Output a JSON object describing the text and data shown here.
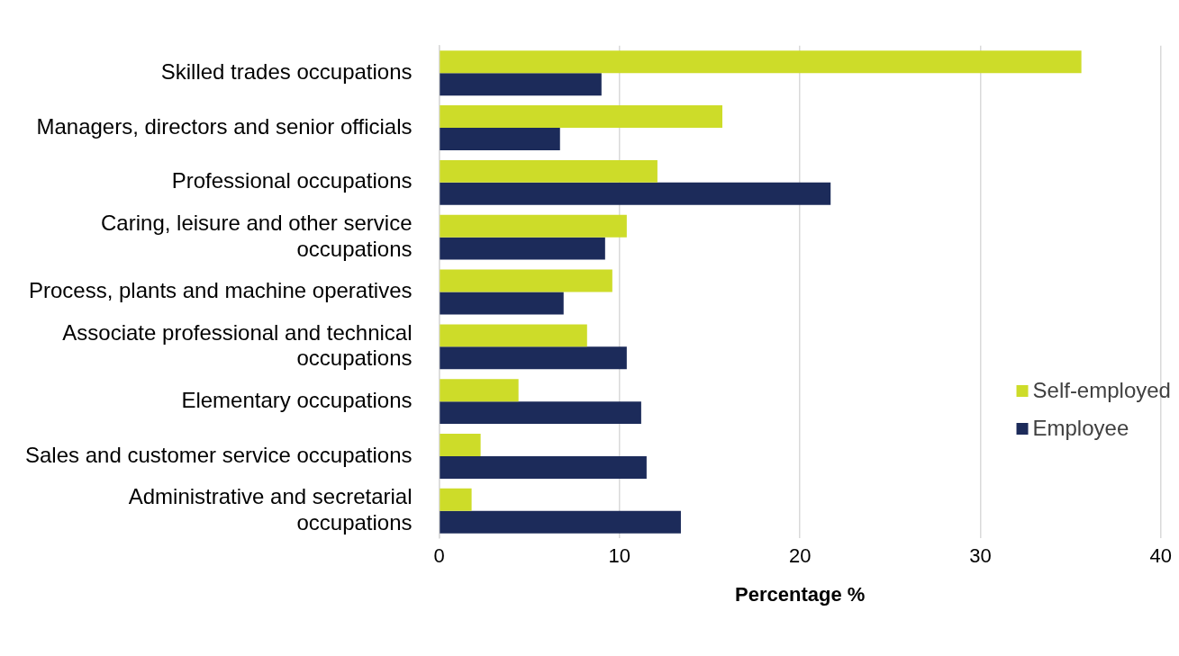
{
  "chart_data": {
    "type": "bar",
    "orientation": "horizontal",
    "xlabel": "Percentage %",
    "categories": [
      "Skilled trades occupations",
      "Managers, directors and senior officials",
      "Professional occupations",
      "Caring, leisure and other service occupations",
      "Process, plants and machine operatives",
      "Associate professional and technical occupations",
      "Elementary occupations",
      "Sales and customer service occupations",
      "Administrative and secretarial occupations"
    ],
    "series": [
      {
        "name": "Self-employed",
        "color": "#cddc29",
        "values": [
          35.6,
          15.7,
          12.1,
          10.4,
          9.6,
          8.2,
          4.4,
          2.3,
          1.8
        ]
      },
      {
        "name": "Employee",
        "color": "#1c2b5a",
        "values": [
          9.0,
          6.7,
          21.7,
          9.2,
          6.9,
          10.4,
          11.2,
          11.5,
          13.4
        ]
      }
    ],
    "xlim": [
      0,
      40
    ],
    "xticks": [
      0,
      10,
      20,
      30,
      40
    ],
    "grid": "x",
    "legend": "right"
  }
}
